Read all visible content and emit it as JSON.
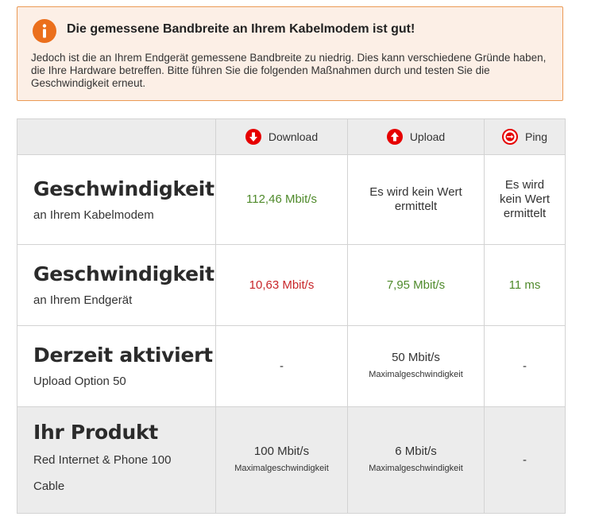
{
  "notice": {
    "icon": "info-icon",
    "accent": "#eb6f1c",
    "title": "Die gemessene Bandbreite an Ihrem Kabelmodem ist gut!",
    "text": "Jedoch ist die an Ihrem Endgerät gemessene Bandbreite zu niedrig. Dies kann verschiedene Gründe haben, die Ihre Hardware betreffen. Bitte führen Sie die folgenden Maßnahmen durch und testen Sie die Geschwindigkeit erneut."
  },
  "table": {
    "headers": {
      "download": {
        "label": "Download",
        "icon": "download-arrow-icon"
      },
      "upload": {
        "label": "Upload",
        "icon": "upload-arrow-icon"
      },
      "ping": {
        "label": "Ping",
        "icon": "ping-icon"
      }
    },
    "rows": [
      {
        "title": "Geschwindigkeit",
        "subtitle": "an Ihrem Kabelmodem",
        "download": {
          "value": "112,46 Mbit/s",
          "status": "good"
        },
        "upload": {
          "value": "Es wird kein Wert ermittelt"
        },
        "ping": {
          "value": "Es wird kein Wert ermittelt"
        }
      },
      {
        "title": "Geschwindigkeit",
        "subtitle": "an Ihrem Endgerät",
        "download": {
          "value": "10,63 Mbit/s",
          "status": "bad"
        },
        "upload": {
          "value": "7,95 Mbit/s",
          "status": "good"
        },
        "ping": {
          "value": "11 ms",
          "status": "good"
        }
      },
      {
        "title": "Derzeit aktiviert",
        "subtitle": "Upload Option 50",
        "download": {
          "value": "-"
        },
        "upload": {
          "value": "50 Mbit/s",
          "note": "Maximalgeschwindigkeit"
        },
        "ping": {
          "value": "-"
        }
      },
      {
        "title": "Ihr Produkt",
        "subtitle": "Red Internet & Phone 100 Cable",
        "download": {
          "value": "100 Mbit/s",
          "note": "Maximalgeschwindigkeit"
        },
        "upload": {
          "value": "6 Mbit/s",
          "note": "Maximalgeschwindigkeit"
        },
        "ping": {
          "value": "-"
        }
      }
    ]
  },
  "colors": {
    "good": "#4f8a2b",
    "bad": "#c8262a",
    "brand_red": "#e60000"
  }
}
